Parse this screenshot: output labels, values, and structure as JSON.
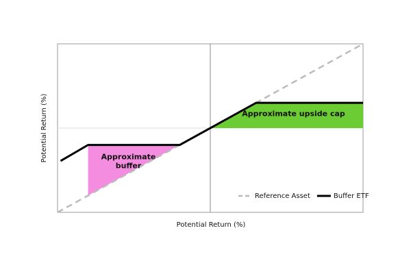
{
  "chart_data": {
    "type": "line",
    "x_label": "Potential Return (%)",
    "y_label": "Potential Return (%)",
    "xlim": [
      -10,
      10
    ],
    "ylim": [
      -10,
      10
    ],
    "legend": "lower right",
    "series": [
      {
        "name": "Reference Asset",
        "color": "#bbbbbb",
        "dashed": true,
        "x": [
          -10,
          10
        ],
        "values": [
          -10,
          10
        ]
      },
      {
        "name": "Buffer ETF",
        "color": "#000000",
        "dashed": false,
        "x": [
          -9.8,
          -8,
          -2,
          3,
          10
        ],
        "values": [
          -3.9,
          -2,
          -2,
          3,
          3
        ]
      }
    ],
    "regions": [
      {
        "label": "Approximate buffer",
        "color": "#f48ce0",
        "x": [
          -8,
          -2,
          -8
        ],
        "y": [
          -2,
          -2,
          -8
        ]
      },
      {
        "label": "Approximate upside cap",
        "color": "#6ccc33",
        "x": [
          0,
          3,
          10,
          10
        ],
        "y": [
          0,
          3,
          3,
          0
        ]
      }
    ]
  }
}
